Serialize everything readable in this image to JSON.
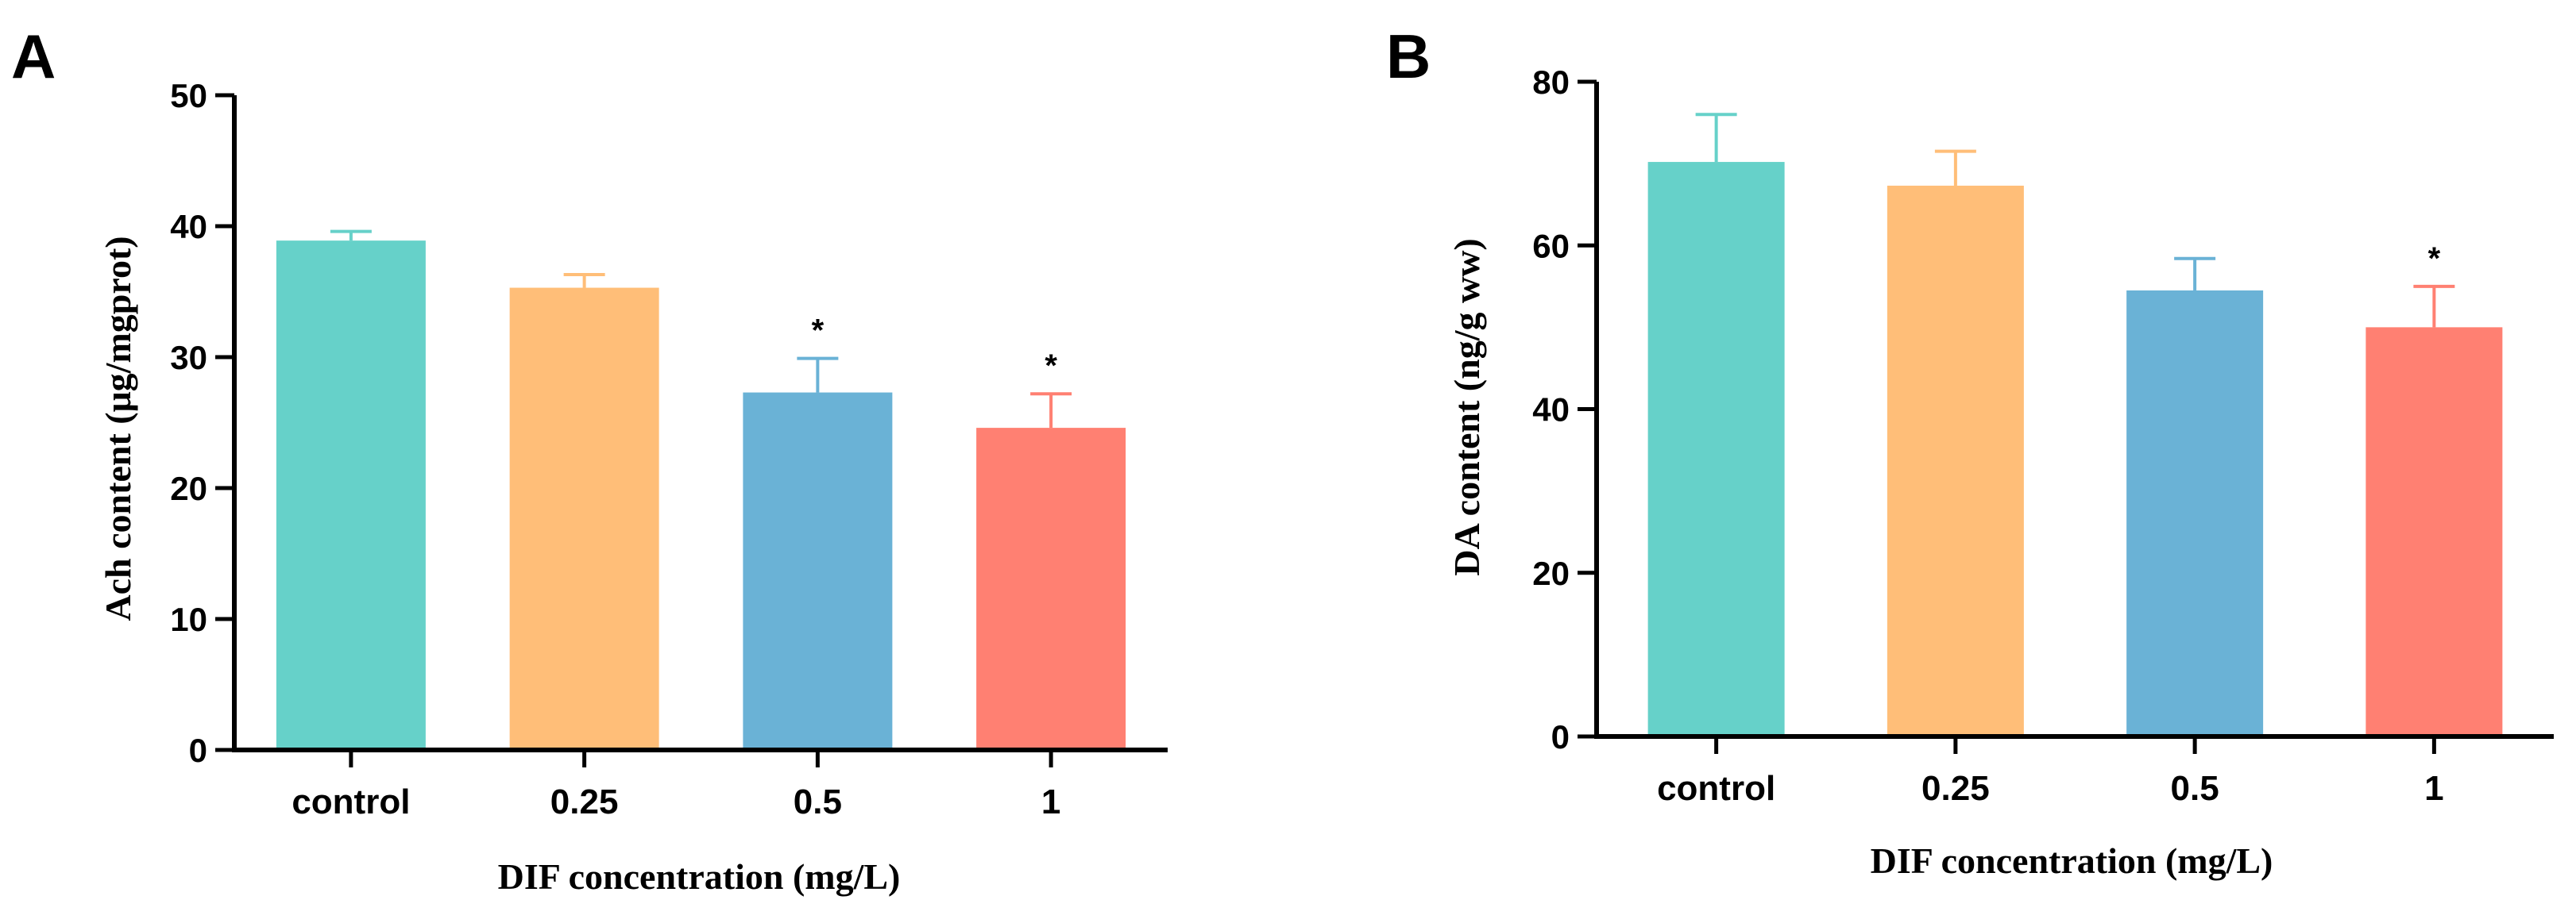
{
  "palette": [
    "#66d1c9",
    "#ffbe78",
    "#6ab2d6",
    "#ff8072"
  ],
  "chart_data": [
    {
      "panel": "A",
      "type": "bar",
      "categories": [
        "control",
        "0.25",
        "0.5",
        "1"
      ],
      "values": [
        38.9,
        35.3,
        27.3,
        24.6
      ],
      "errors": [
        0.7,
        1.0,
        2.6,
        2.6
      ],
      "significance": [
        "",
        "",
        "*",
        "*"
      ],
      "xlabel": "DIF concentration (mg/L)",
      "ylabel": "Ach content (μg/mgprot)",
      "ylim": [
        0,
        50
      ],
      "yticks": [
        0,
        10,
        20,
        30,
        40,
        50
      ],
      "grid": false
    },
    {
      "panel": "B",
      "type": "bar",
      "categories": [
        "control",
        "0.25",
        "0.5",
        "1"
      ],
      "values": [
        70.2,
        67.3,
        54.5,
        50.0
      ],
      "errors": [
        5.8,
        4.2,
        3.9,
        5.0
      ],
      "significance": [
        "",
        "",
        "",
        "*"
      ],
      "xlabel": "DIF concentration (mg/L)",
      "ylabel": "DA content (ng/g ww)",
      "ylim": [
        0,
        80
      ],
      "yticks": [
        0,
        20,
        40,
        60,
        80
      ],
      "grid": false
    }
  ]
}
